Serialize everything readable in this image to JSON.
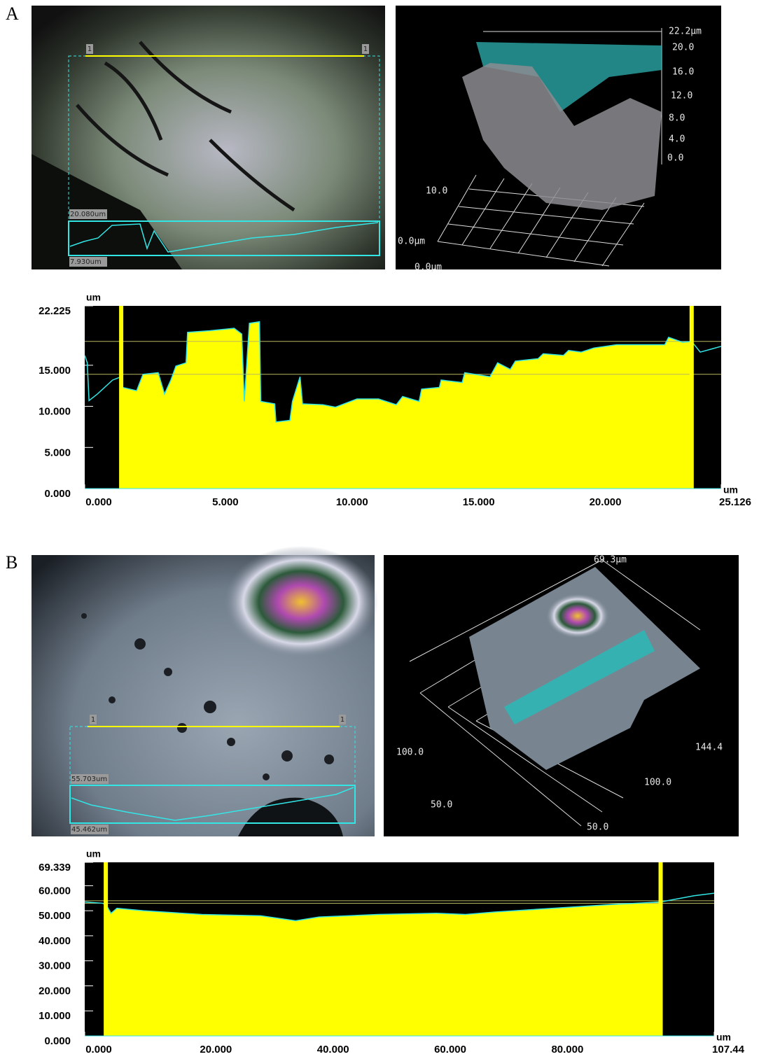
{
  "panels": [
    {
      "label": "A",
      "image_labels": [
        "20.080um",
        "7.930um"
      ],
      "cursor_labels": [
        "1",
        "1"
      ],
      "view3d_labels": [
        "22.2µm",
        "20.0",
        "16.0",
        "12.0",
        "8.0",
        "4.0",
        "0.0",
        "10.0",
        "0.0µm",
        "0.0µm"
      ]
    },
    {
      "label": "B",
      "image_labels": [
        "55.703um",
        "45.462um"
      ],
      "cursor_labels": [
        "1",
        "1"
      ],
      "view3d_labels": [
        "69.3µm",
        "144.4",
        "100.0",
        "100.0",
        "50.0",
        "50.0"
      ]
    }
  ],
  "chart_data": [
    {
      "type": "area",
      "ylabel": "um",
      "xlabel": "um",
      "xlim": [
        0,
        25.126
      ],
      "ylim": [
        0,
        22.225
      ],
      "xticks": [
        {
          "value": 0,
          "label": "0.000"
        },
        {
          "value": 5,
          "label": "5.000"
        },
        {
          "value": 10,
          "label": "10.000"
        },
        {
          "value": 15,
          "label": "15.000"
        },
        {
          "value": 20,
          "label": "20.000"
        },
        25.126
      ],
      "yticks": [
        {
          "value": 0,
          "label": "0.000"
        },
        {
          "value": 5,
          "label": "5.000"
        },
        {
          "value": 10,
          "label": "10.000"
        },
        {
          "value": 15,
          "label": "15.000"
        },
        22.225
      ],
      "x": [
        0,
        0.1,
        0.17,
        0.5,
        1.1,
        1.44,
        1.5,
        2.05,
        2.3,
        2.9,
        3.15,
        3.4,
        3.6,
        4.0,
        4.06,
        4.94,
        5.9,
        6.2,
        6.3,
        6.5,
        6.9,
        6.95,
        7.5,
        7.55,
        8.1,
        8.2,
        8.5,
        8.6,
        9.4,
        9.9,
        10.75,
        11.6,
        12.3,
        12.55,
        13.2,
        13.3,
        14.0,
        14.07,
        14.9,
        15.0,
        16.0,
        16.3,
        16.8,
        17.0,
        17.9,
        18.1,
        18.9,
        19.1,
        19.6,
        20.1,
        21.0,
        22.9,
        23.05,
        23.6,
        23.96,
        24.3,
        25.126
      ],
      "values": [
        16.2,
        15.3,
        10.7,
        11.5,
        13.2,
        13.6,
        12.3,
        11.9,
        13.9,
        14.1,
        11.5,
        13.2,
        14.9,
        15.3,
        19.0,
        19.2,
        19.5,
        18.8,
        10.6,
        20.1,
        20.3,
        10.6,
        10.3,
        8.1,
        8.3,
        10.6,
        13.6,
        10.3,
        10.2,
        9.9,
        10.9,
        10.9,
        10.2,
        11.2,
        10.6,
        12.1,
        12.3,
        13.2,
        12.9,
        14.1,
        13.6,
        15.3,
        14.5,
        15.5,
        15.8,
        16.4,
        16.2,
        16.8,
        16.6,
        17.1,
        17.5,
        17.5,
        18.4,
        17.8,
        17.9,
        16.6,
        17.3
      ],
      "cursors": [
        1.44,
        23.96
      ],
      "reference_lines": [
        17.9,
        13.9
      ],
      "line_color": "#33e6e6",
      "fill_color": "#ffff00",
      "background": "#000000"
    },
    {
      "type": "area",
      "ylabel": "um",
      "xlabel": "um",
      "xlim": [
        0,
        107.44
      ],
      "ylim": [
        0,
        69.339
      ],
      "xticks": [
        {
          "value": 0,
          "label": "0.000"
        },
        {
          "value": 20,
          "label": "20.000"
        },
        {
          "value": 40,
          "label": "40.000"
        },
        {
          "value": 60,
          "label": "60.000"
        },
        {
          "value": 80,
          "label": "80.000"
        },
        107.44
      ],
      "yticks": [
        {
          "value": 0,
          "label": "0.000"
        },
        {
          "value": 10,
          "label": "10.000"
        },
        {
          "value": 20,
          "label": "20.000"
        },
        {
          "value": 30,
          "label": "30.000"
        },
        {
          "value": 40,
          "label": "40.000"
        },
        {
          "value": 50,
          "label": "50.000"
        },
        {
          "value": 60,
          "label": "60.000"
        },
        69.339
      ],
      "x": [
        0,
        3,
        3.6,
        4.5,
        5.5,
        10,
        20,
        30,
        36,
        40,
        50,
        60,
        65,
        70,
        80,
        90,
        98.3,
        104,
        107.44
      ],
      "values": [
        53.5,
        53,
        52.5,
        49,
        51,
        50,
        48.5,
        48,
        46,
        47.5,
        48.5,
        49,
        48.5,
        49.5,
        51,
        52.5,
        53.5,
        56,
        57
      ],
      "cursors": [
        3.6,
        98.3
      ],
      "reference_lines": [
        54,
        53
      ],
      "line_color": "#33e6e6",
      "fill_color": "#ffff00",
      "background": "#000000"
    }
  ]
}
